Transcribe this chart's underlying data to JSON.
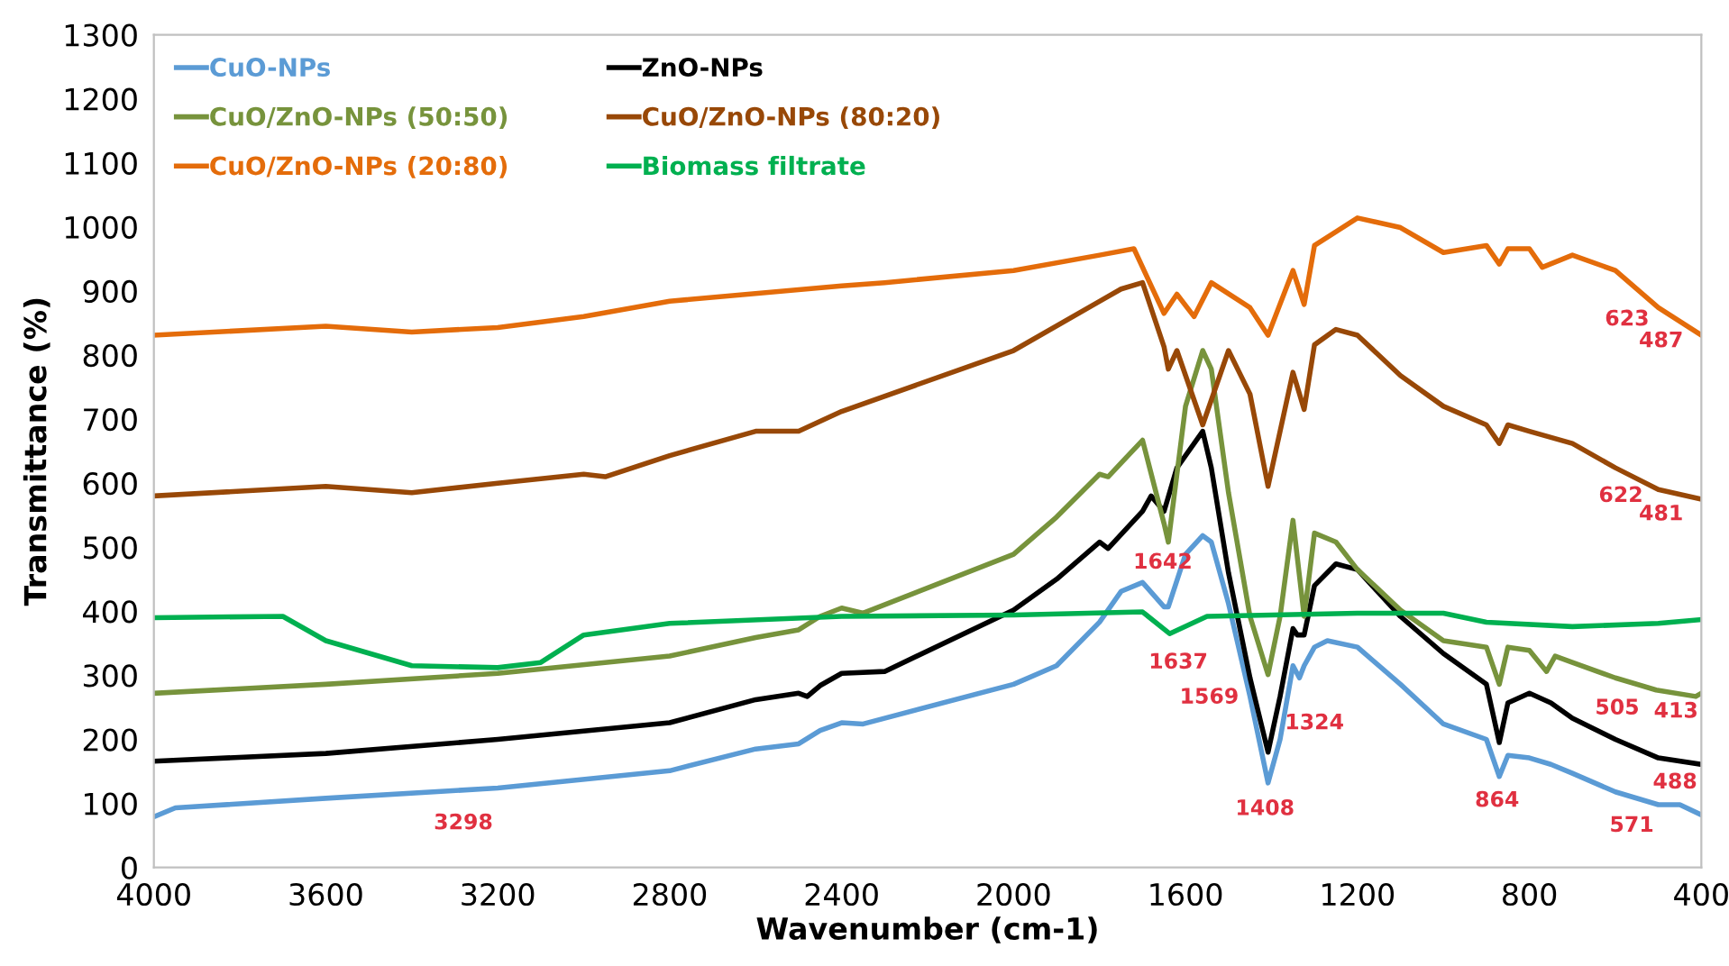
{
  "chart_data": {
    "type": "line",
    "xlabel": "Wavenumber (cm-1)",
    "ylabel": "Transmittance (%)",
    "xlim": [
      4000,
      400
    ],
    "xticks": [
      4000,
      3600,
      3200,
      2800,
      2400,
      2000,
      1600,
      1200,
      800,
      400
    ],
    "ylim": [
      0,
      1300
    ],
    "yticks": [
      0,
      100,
      200,
      300,
      400,
      500,
      600,
      700,
      800,
      900,
      1000,
      1100,
      1200,
      1300
    ],
    "grid": false,
    "legend": "top left",
    "marker": "none",
    "line_style": "solid",
    "series": [
      {
        "name": "CuO-NPs",
        "color": "#5b9bd5",
        "x": [
          4000,
          3950,
          3600,
          3200,
          2800,
          2600,
          2500,
          2450,
          2400,
          2350,
          2000,
          1900,
          1800,
          1750,
          1700,
          1650,
          1640,
          1600,
          1560,
          1540,
          1500,
          1450,
          1408,
          1380,
          1350,
          1335,
          1324,
          1300,
          1270,
          1200,
          1100,
          1000,
          900,
          870,
          850,
          800,
          750,
          700,
          600,
          500,
          450,
          400
        ],
        "values": [
          79,
          93,
          108,
          124,
          151,
          185,
          193,
          214,
          226,
          224,
          286,
          315,
          383,
          431,
          445,
          407,
          407,
          489,
          518,
          508,
          412,
          267,
          132,
          200,
          315,
          296,
          315,
          344,
          354,
          344,
          286,
          224,
          200,
          142,
          175,
          171,
          161,
          147,
          118,
          98,
          98,
          82
        ]
      },
      {
        "name": "ZnO-NPs",
        "color": "#000000",
        "x": [
          4000,
          3600,
          3200,
          2800,
          2600,
          2500,
          2480,
          2450,
          2400,
          2300,
          2000,
          1900,
          1800,
          1780,
          1700,
          1680,
          1650,
          1620,
          1560,
          1540,
          1500,
          1450,
          1408,
          1380,
          1350,
          1340,
          1324,
          1300,
          1250,
          1200,
          1100,
          1000,
          900,
          870,
          850,
          800,
          750,
          700,
          600,
          500,
          400
        ],
        "values": [
          166,
          178,
          200,
          226,
          262,
          272,
          267,
          284,
          303,
          306,
          402,
          450,
          508,
          498,
          556,
          580,
          556,
          624,
          681,
          624,
          460,
          296,
          180,
          267,
          373,
          363,
          363,
          440,
          474,
          465,
          392,
          334,
          286,
          195,
          257,
          272,
          257,
          233,
          200,
          171,
          161
        ]
      },
      {
        "name": "CuO/ZnO-NPs (50:50)",
        "color": "#77933c",
        "x": [
          4000,
          3600,
          3200,
          2800,
          2600,
          2500,
          2450,
          2400,
          2350,
          2000,
          1900,
          1800,
          1780,
          1700,
          1650,
          1640,
          1600,
          1560,
          1540,
          1500,
          1450,
          1408,
          1380,
          1350,
          1324,
          1300,
          1250,
          1200,
          1100,
          1000,
          900,
          870,
          850,
          800,
          760,
          740,
          700,
          600,
          505,
          413,
          400
        ],
        "values": [
          272,
          286,
          303,
          330,
          359,
          371,
          392,
          405,
          397,
          489,
          547,
          614,
          610,
          667,
          537,
          508,
          720,
          807,
          778,
          585,
          392,
          301,
          392,
          542,
          392,
          522,
          508,
          465,
          402,
          354,
          344,
          286,
          344,
          339,
          306,
          330,
          320,
          296,
          277,
          267,
          272
        ]
      },
      {
        "name": "CuO/ZnO-NPs (80:20)",
        "color": "#984807",
        "x": [
          4000,
          3600,
          3400,
          3200,
          3000,
          2950,
          2800,
          2600,
          2500,
          2400,
          2000,
          1800,
          1750,
          1700,
          1650,
          1640,
          1620,
          1560,
          1500,
          1450,
          1408,
          1380,
          1350,
          1324,
          1300,
          1250,
          1200,
          1100,
          1000,
          900,
          870,
          850,
          800,
          700,
          600,
          500,
          400
        ],
        "values": [
          580,
          595,
          585,
          600,
          614,
          610,
          643,
          681,
          681,
          712,
          807,
          884,
          903,
          913,
          813,
          778,
          807,
          691,
          807,
          739,
          595,
          681,
          773,
          715,
          816,
          840,
          831,
          768,
          720,
          691,
          662,
          691,
          681,
          662,
          624,
          590,
          575
        ]
      },
      {
        "name": "CuO/ZnO-NPs (20:80)",
        "color": "#e46c0a",
        "x": [
          4000,
          3600,
          3400,
          3200,
          3000,
          2800,
          2400,
          2300,
          2000,
          1800,
          1720,
          1650,
          1620,
          1580,
          1540,
          1450,
          1408,
          1350,
          1324,
          1300,
          1200,
          1100,
          1000,
          900,
          870,
          850,
          800,
          770,
          700,
          600,
          500,
          400
        ],
        "values": [
          831,
          845,
          836,
          843,
          860,
          884,
          908,
          913,
          932,
          956,
          966,
          865,
          895,
          860,
          913,
          874,
          831,
          932,
          879,
          971,
          1014,
          999,
          960,
          971,
          942,
          966,
          966,
          937,
          956,
          932,
          874,
          831
        ]
      },
      {
        "name": "Biomass filtrate",
        "color": "#00b050",
        "x": [
          4000,
          3700,
          3600,
          3400,
          3200,
          3100,
          3000,
          2800,
          2400,
          2000,
          1700,
          1637,
          1550,
          1200,
          1000,
          900,
          700,
          500,
          400
        ],
        "values": [
          390,
          392,
          354,
          315,
          312,
          320,
          363,
          381,
          392,
          394,
          399,
          365,
          392,
          397,
          397,
          383,
          376,
          381,
          387
        ]
      }
    ],
    "annotations": [
      "3298",
      "1642",
      "1637",
      "1569",
      "1324",
      "1408",
      "864",
      "571",
      "488",
      "505",
      "413",
      "622",
      "481",
      "623",
      "487"
    ]
  }
}
